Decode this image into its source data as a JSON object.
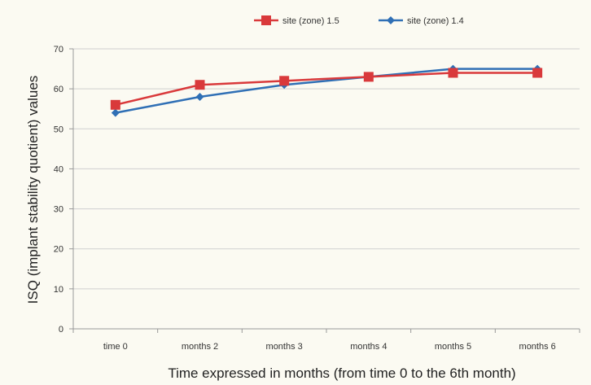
{
  "chart_data": {
    "type": "line",
    "categories": [
      "time 0",
      "months 2",
      "months 3",
      "months 4",
      "months 5",
      "months 6"
    ],
    "series": [
      {
        "name": "site (zone) 1.5",
        "values": [
          56,
          61,
          62,
          63,
          64,
          64
        ],
        "color": "#d9393b",
        "marker": "square"
      },
      {
        "name": "site (zone) 1.4",
        "values": [
          54,
          58,
          61,
          63,
          65,
          65
        ],
        "color": "#2f6fb5",
        "marker": "diamond"
      }
    ],
    "title": "",
    "xlabel": "Time expressed in months (from time 0 to the 6th month)",
    "ylabel": "ISQ (implant stability quotient) values",
    "ylim": [
      0,
      70
    ],
    "yticks": [
      0,
      10,
      20,
      30,
      40,
      50,
      60,
      70
    ],
    "grid": true,
    "legend": "top"
  }
}
